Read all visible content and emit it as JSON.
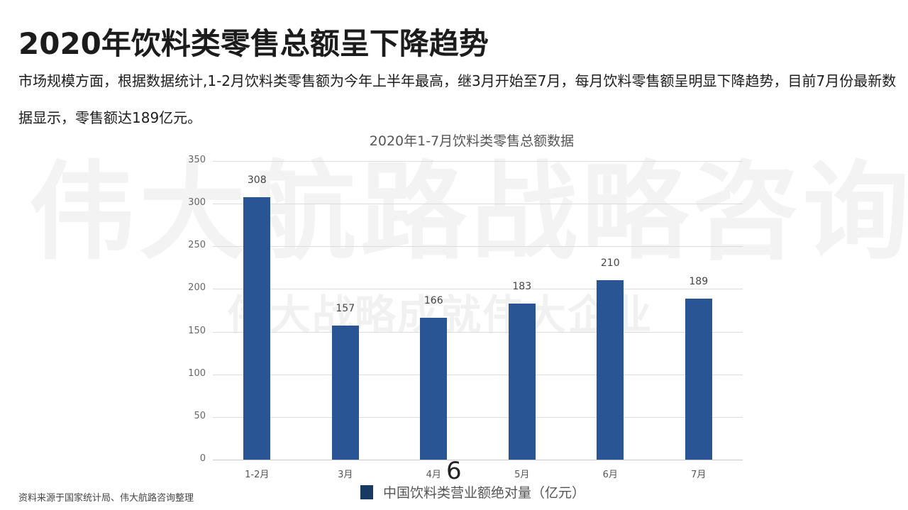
{
  "page": {
    "title": "2020年饮料类零售总额呈下降趋势",
    "description": "市场规模方面，根据数据统计,1-2月饮料类零售额为今年上半年最高，继3月开始至7月，每月饮料零售额呈明显下降趋势，目前7月份最新数据显示，零售额达189亿元。",
    "watermark_main": "伟大航路战略咨询",
    "watermark_sub": "伟大战略成就伟大企业",
    "source_note": "资料来源于国家统计局、伟大航路咨询整理",
    "page_number": "6"
  },
  "chart_data": {
    "type": "bar",
    "title": "2020年1-7月饮料类零售总额数据",
    "categories": [
      "1-2月",
      "3月",
      "4月",
      "5月",
      "6月",
      "7月"
    ],
    "series": [
      {
        "name": "中国饮料类营业额绝对量（亿元）",
        "values": [
          308,
          157,
          166,
          183,
          210,
          189
        ],
        "color": "#2a5595"
      }
    ],
    "values": [
      308,
      157,
      166,
      183,
      210,
      189
    ],
    "xlabel": "",
    "ylabel": "",
    "ylim": [
      0,
      350
    ],
    "yticks": [
      "0",
      "50",
      "100",
      "150",
      "200",
      "250",
      "300",
      "350"
    ],
    "data_labels": [
      "308",
      "157",
      "166",
      "183",
      "210",
      "189"
    ],
    "grid": true,
    "legend_position": "bottom",
    "legend_swatch_color": "#173a63"
  }
}
